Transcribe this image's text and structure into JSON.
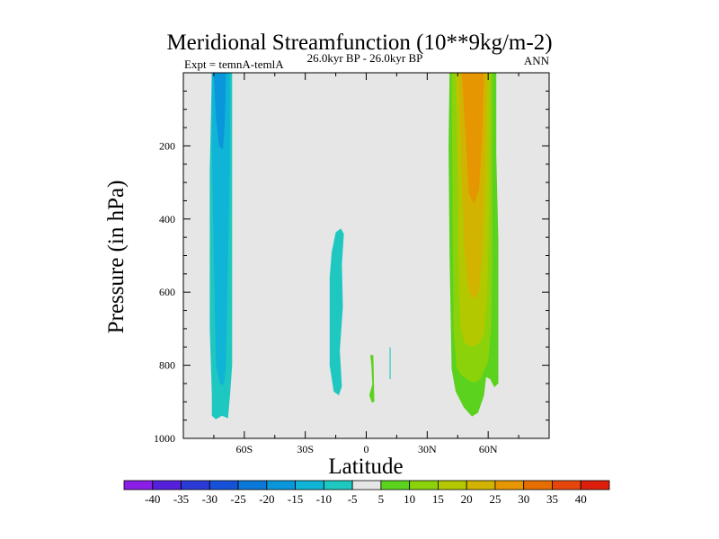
{
  "chart_data": {
    "type": "contour",
    "title": "Meridional Streamfunction (10**9kg/m-2)",
    "left_label": "Expt = temnA-temlA",
    "center_label": "26.0kyr BP - 26.0kyr BP",
    "right_label": "ANN",
    "xlabel": "Latitude",
    "ylabel": "Pressure (in hPa)",
    "xlim": [
      -90,
      90
    ],
    "ylim": [
      0,
      1000
    ],
    "x_tick_values": [
      -60,
      -30,
      0,
      30,
      60
    ],
    "x_tick_labels": [
      "60S",
      "30S",
      "0",
      "30N",
      "60N"
    ],
    "y_tick_values": [
      200,
      400,
      600,
      800,
      1000
    ],
    "y_tick_labels": [
      "200",
      "400",
      "600",
      "800",
      "1000"
    ],
    "background_color": "#e6e6e6",
    "levels": [
      -40,
      -35,
      -30,
      -25,
      -20,
      -15,
      -10,
      -5,
      5,
      10,
      15,
      20,
      25,
      30,
      35,
      40
    ],
    "level_labels": [
      "-40",
      "-35",
      "-30",
      "-25",
      "-20",
      "-15",
      "-10",
      "-5",
      "5",
      "10",
      "15",
      "20",
      "25",
      "30",
      "35",
      "40"
    ],
    "colorbar_colors": [
      "#8a1ee6",
      "#5520dc",
      "#2a3ad6",
      "#1652d8",
      "#0a78d8",
      "#0a96da",
      "#10b4d6",
      "#1ec8c0",
      "#e6e6e6",
      "#5ad21e",
      "#8cd20a",
      "#b4c800",
      "#d2b400",
      "#e69600",
      "#e66e00",
      "#e6460a",
      "#dc1e0a"
    ],
    "regions": [
      {
        "color": "#1ec8c0",
        "points": [
          [
            -76,
            0
          ],
          [
            -66,
            0
          ],
          [
            -66,
            800
          ],
          [
            -67,
            880
          ],
          [
            -68,
            945
          ],
          [
            -71,
            938
          ],
          [
            -74,
            948
          ],
          [
            -76,
            938
          ],
          [
            -76,
            880
          ],
          [
            -77,
            700
          ],
          [
            -77,
            270
          ]
        ]
      },
      {
        "color": "#10b4d6",
        "points": [
          [
            -76,
            0
          ],
          [
            -67,
            0
          ],
          [
            -67,
            230
          ],
          [
            -68,
            500
          ],
          [
            -69,
            800
          ],
          [
            -70,
            855
          ],
          [
            -72,
            850
          ],
          [
            -74,
            800
          ],
          [
            -75,
            500
          ],
          [
            -76,
            200
          ]
        ]
      },
      {
        "color": "#0a96da",
        "points": [
          [
            -75,
            0
          ],
          [
            -69,
            0
          ],
          [
            -69.5,
            120
          ],
          [
            -70.5,
            210
          ],
          [
            -72.5,
            200
          ],
          [
            -74,
            120
          ]
        ]
      },
      {
        "color": "#1ec8c0",
        "points": [
          [
            -12,
            525
          ],
          [
            -11,
            440
          ],
          [
            -12.5,
            426
          ],
          [
            -15,
            436
          ],
          [
            -17,
            490
          ],
          [
            -18,
            560
          ],
          [
            -18,
            800
          ],
          [
            -16,
            872
          ],
          [
            -13.5,
            882
          ],
          [
            -12,
            858
          ],
          [
            -13,
            760
          ],
          [
            -11.5,
            640
          ]
        ]
      },
      {
        "color": "#1ec8c0",
        "points": [
          [
            11.5,
            750
          ],
          [
            12,
            752
          ],
          [
            12,
            838
          ],
          [
            11.5,
            838
          ]
        ]
      },
      {
        "color": "#5ad21e",
        "points": [
          [
            2,
            772
          ],
          [
            3.5,
            772
          ],
          [
            4,
            900
          ],
          [
            2.8,
            902
          ],
          [
            1.5,
            882
          ],
          [
            3,
            852
          ],
          [
            2.5,
            800
          ]
        ]
      },
      {
        "color": "#5ad21e",
        "points": [
          [
            41,
            0
          ],
          [
            64,
            0
          ],
          [
            64,
            225
          ],
          [
            65,
            460
          ],
          [
            65,
            850
          ],
          [
            63,
            860
          ],
          [
            61,
            838
          ],
          [
            59,
            832
          ],
          [
            58,
            882
          ],
          [
            55,
            930
          ],
          [
            52,
            940
          ],
          [
            48,
            915
          ],
          [
            44,
            872
          ],
          [
            42,
            810
          ],
          [
            41,
            500
          ],
          [
            40.5,
            200
          ]
        ]
      },
      {
        "color": "#8cd20a",
        "points": [
          [
            42,
            0
          ],
          [
            62,
            0
          ],
          [
            62,
            520
          ],
          [
            61.5,
            700
          ],
          [
            60,
            790
          ],
          [
            58,
            815
          ],
          [
            56,
            840
          ],
          [
            53,
            848
          ],
          [
            50,
            840
          ],
          [
            47,
            828
          ],
          [
            44.5,
            808
          ],
          [
            43,
            700
          ],
          [
            42.5,
            400
          ]
        ]
      },
      {
        "color": "#b4c800",
        "points": [
          [
            44,
            0
          ],
          [
            61,
            0
          ],
          [
            60.5,
            400
          ],
          [
            59.5,
            600
          ],
          [
            58,
            712
          ],
          [
            56,
            738
          ],
          [
            52,
            750
          ],
          [
            48.5,
            740
          ],
          [
            46.5,
            700
          ],
          [
            45.5,
            550
          ],
          [
            45,
            300
          ]
        ]
      },
      {
        "color": "#d2b400",
        "points": [
          [
            45.5,
            0
          ],
          [
            59.5,
            0
          ],
          [
            58.5,
            300
          ],
          [
            57,
            500
          ],
          [
            55.5,
            600
          ],
          [
            53,
            620
          ],
          [
            50.5,
            600
          ],
          [
            48.5,
            500
          ],
          [
            47,
            300
          ]
        ]
      },
      {
        "color": "#e69600",
        "points": [
          [
            47,
            0
          ],
          [
            58,
            0
          ],
          [
            57,
            180
          ],
          [
            55.5,
            320
          ],
          [
            53,
            360
          ],
          [
            50.5,
            330
          ],
          [
            49,
            180
          ]
        ]
      }
    ]
  }
}
